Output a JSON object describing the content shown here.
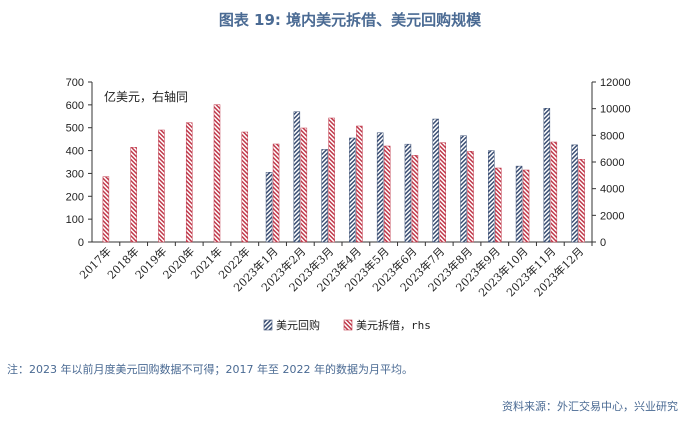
{
  "title": "图表 19: 境内美元拆借、美元回购规模",
  "note": "注：2023 年以前月度美元回购数据不可得；2017 年至 2022 年的数据为月平均。",
  "source": "资料来源：外汇交易中心，兴业研究",
  "chart_data": {
    "type": "bar",
    "annotation": "亿美元，右轴同",
    "categories": [
      "2017年",
      "2018年",
      "2019年",
      "2020年",
      "2021年",
      "2022年",
      "2023年1月",
      "2023年2月",
      "2023年3月",
      "2023年4月",
      "2023年5月",
      "2023年6月",
      "2023年7月",
      "2023年8月",
      "2023年9月",
      "2023年10月",
      "2023年11月",
      "2023年12月"
    ],
    "series": [
      {
        "name": "美元回购",
        "axis": "left",
        "color": "#3b4f74",
        "pattern": "diagonal-hatch",
        "values": [
          null,
          null,
          null,
          null,
          null,
          null,
          305,
          570,
          405,
          455,
          478,
          428,
          538,
          465,
          400,
          332,
          585,
          425
        ]
      },
      {
        "name": "美元拆借，rhs",
        "axis": "right",
        "color": "#c0394b",
        "pattern": "diagonal-hatch",
        "values": [
          4900,
          7100,
          8400,
          8950,
          10300,
          8250,
          7350,
          8550,
          9300,
          8700,
          7200,
          6500,
          7450,
          6800,
          5550,
          5400,
          7500,
          6200
        ]
      }
    ],
    "y_left": {
      "min": 0,
      "max": 700,
      "ticks": [
        0,
        100,
        200,
        300,
        400,
        500,
        600,
        700
      ]
    },
    "y_right": {
      "min": 0,
      "max": 12000,
      "ticks": [
        0,
        2000,
        4000,
        6000,
        8000,
        10000,
        12000
      ]
    },
    "legend_position": "bottom-center",
    "grid": false
  }
}
